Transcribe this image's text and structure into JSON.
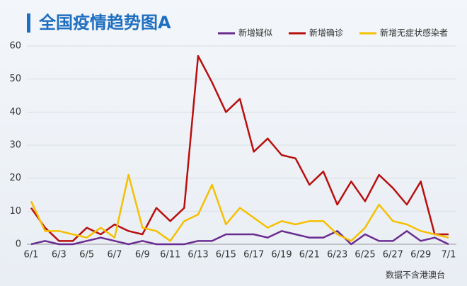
{
  "chart_data": {
    "type": "line",
    "title": "全国疫情趋势图A",
    "note": "数据不含港澳台",
    "categories": [
      "6/1",
      null,
      "6/3",
      null,
      "6/5",
      null,
      "6/7",
      null,
      "6/9",
      null,
      "6/11",
      null,
      "6/13",
      null,
      "6/15",
      null,
      "6/17",
      null,
      "6/19",
      null,
      "6/21",
      null,
      "6/23",
      null,
      "6/25",
      null,
      "6/27",
      null,
      "6/29",
      null,
      "7/1"
    ],
    "series": [
      {
        "name": "新增疑似",
        "color": "#6a2c91",
        "values": [
          0,
          1,
          0,
          0,
          1,
          2,
          1,
          0,
          1,
          0,
          0,
          0,
          1,
          1,
          3,
          3,
          3,
          2,
          4,
          3,
          2,
          2,
          4,
          0,
          3,
          1,
          1,
          4,
          1,
          2,
          0
        ]
      },
      {
        "name": "新增确诊",
        "color": "#b80f0f",
        "values": [
          11,
          5,
          1,
          1,
          5,
          3,
          6,
          4,
          3,
          11,
          7,
          11,
          57,
          49,
          40,
          44,
          28,
          32,
          27,
          26,
          18,
          22,
          12,
          19,
          13,
          21,
          17,
          12,
          19,
          3,
          3
        ]
      },
      {
        "name": "新增无症状感染者",
        "color": "#f5c000",
        "values": [
          13,
          4,
          4,
          3,
          2,
          5,
          2,
          21,
          5,
          4,
          1,
          7,
          9,
          18,
          6,
          11,
          8,
          5,
          7,
          6,
          7,
          7,
          3,
          1,
          5,
          12,
          7,
          6,
          4,
          3,
          2
        ]
      }
    ],
    "ylim": [
      0,
      60
    ],
    "yticks": [
      0,
      10,
      20,
      30,
      40,
      50,
      60
    ],
    "grid": true,
    "legend": "top-right"
  }
}
